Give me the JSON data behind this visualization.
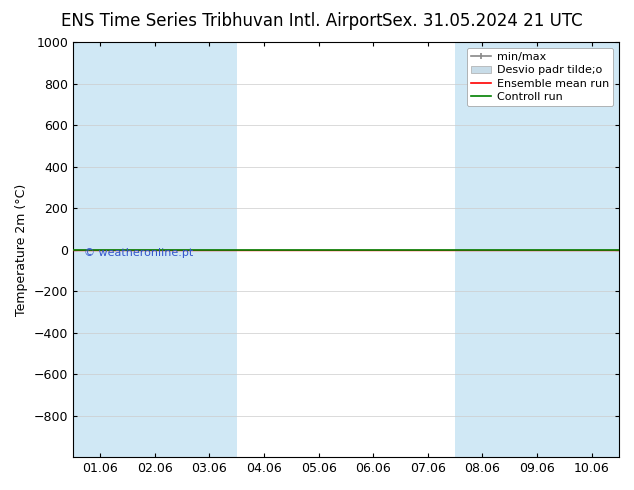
{
  "title_left": "ENS Time Series Tribhuvan Intl. Airport",
  "title_right": "Sex. 31.05.2024 21 UTC",
  "ylabel": "Temperature 2m (°C)",
  "xlabel": "",
  "ylim_top": -1000,
  "ylim_bottom": 1000,
  "yticks": [
    -800,
    -600,
    -400,
    -200,
    0,
    200,
    400,
    600,
    800,
    1000
  ],
  "xlim": [
    0.0,
    10.0
  ],
  "xtick_labels": [
    "01.06",
    "02.06",
    "03.06",
    "04.06",
    "05.06",
    "06.06",
    "07.06",
    "08.06",
    "09.06",
    "10.06"
  ],
  "xtick_positions": [
    0.5,
    1.5,
    2.5,
    3.5,
    4.5,
    5.5,
    6.5,
    7.5,
    8.5,
    9.5
  ],
  "background_color": "#ffffff",
  "plot_bg_color": "#ffffff",
  "shaded_columns_x": [
    [
      0.0,
      1.0
    ],
    [
      1.0,
      2.0
    ],
    [
      2.0,
      3.0
    ],
    [
      7.0,
      8.0
    ],
    [
      8.0,
      9.0
    ],
    [
      9.0,
      10.0
    ]
  ],
  "shaded_color": "#d0e8f5",
  "control_run_y": 0,
  "control_run_color": "#008000",
  "ensemble_mean_color": "#ff0000",
  "min_max_color": "#888888",
  "std_dev_color": "#c8dce8",
  "copyright_text": "© weatheronline.pt",
  "copyright_color": "#3355cc",
  "title_fontsize": 12,
  "axis_fontsize": 9,
  "tick_fontsize": 9,
  "legend_fontsize": 8
}
